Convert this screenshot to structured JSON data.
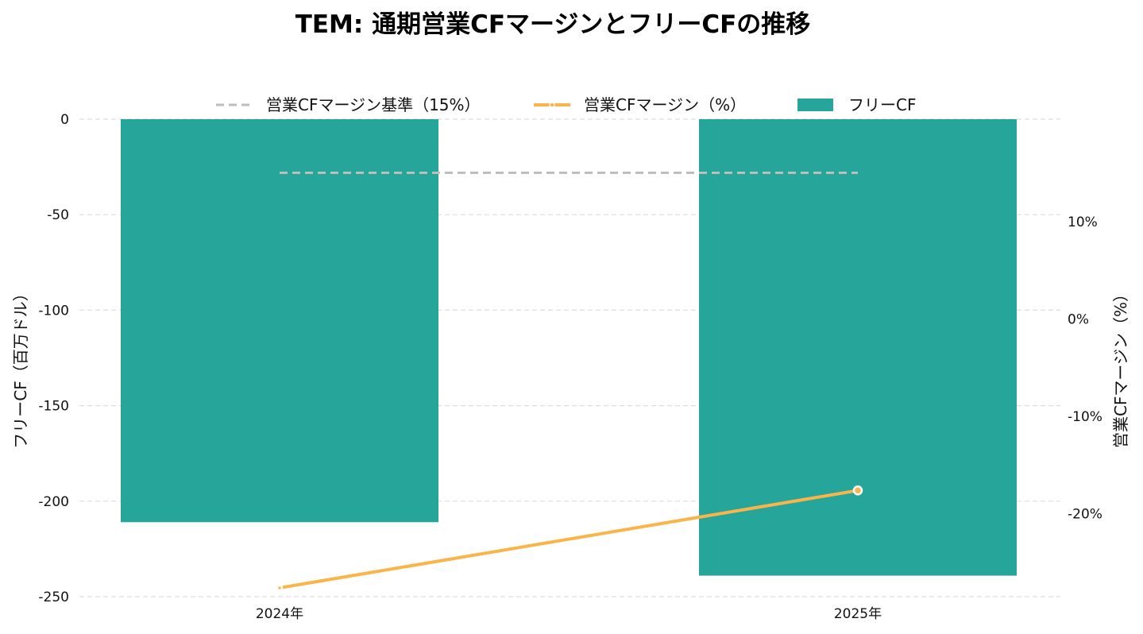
{
  "chart_data": {
    "type": "bar",
    "title": "TEM: 通期営業CFマージンとフリーCFの推移",
    "categories": [
      "2024年",
      "2025年"
    ],
    "left_axis": {
      "label": "フリーCF（百万ドル）",
      "range": [
        -250,
        0
      ],
      "ticks": [
        0,
        -50,
        -100,
        -150,
        -200,
        -250
      ],
      "tick_labels": [
        "0",
        "-50",
        "-100",
        "-150",
        "-200",
        "-250"
      ]
    },
    "right_axis": {
      "label": "営業CFマージン（%）",
      "range": [
        -28.5,
        20.5
      ],
      "ticks": [
        10,
        0,
        -10,
        -20
      ],
      "tick_labels": [
        "10%",
        "0%",
        "-10%",
        "-20%"
      ]
    },
    "series": [
      {
        "name": "フリーCF",
        "type": "bar",
        "axis": "left",
        "values": [
          -211,
          -239
        ],
        "color": "#26a69a"
      },
      {
        "name": "営業CFマージン（%）",
        "type": "line",
        "axis": "right",
        "values": [
          -27.6,
          -17.6
        ],
        "color": "#fbb44a"
      },
      {
        "name": "営業CFマージン基準（15%）",
        "type": "line",
        "axis": "right",
        "style": "dashed",
        "values": [
          15,
          15
        ],
        "color": "#bdbdbd"
      }
    ],
    "legend": {
      "position": "top-center",
      "items": [
        "営業CFマージン基準（15%）",
        "営業CFマージン（%）",
        "フリーCF"
      ]
    },
    "grid": "horizontal-dashed"
  }
}
